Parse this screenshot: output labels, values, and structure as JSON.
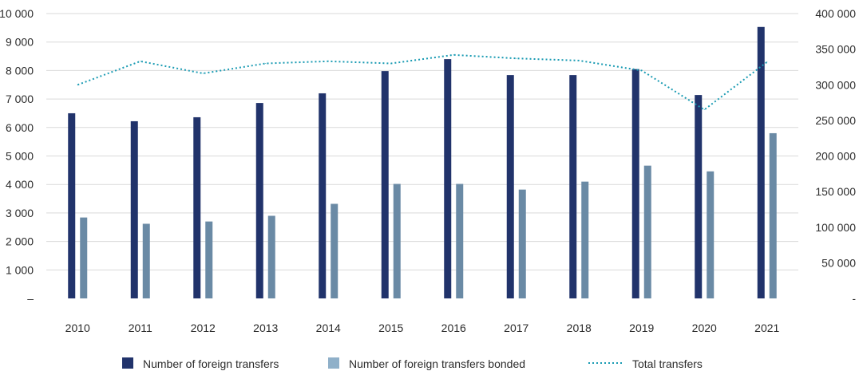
{
  "chart_data": {
    "type": "bar",
    "categories": [
      "2010",
      "2011",
      "2012",
      "2013",
      "2014",
      "2015",
      "2016",
      "2017",
      "2018",
      "2019",
      "2020",
      "2021"
    ],
    "series": [
      {
        "name": "Number of foreign transfers",
        "type": "bar",
        "axis": "left",
        "values": [
          6500,
          6220,
          6360,
          6860,
          7200,
          7980,
          8400,
          7840,
          7840,
          8050,
          7140,
          9530
        ]
      },
      {
        "name": "Number of foreign transfers bonded",
        "type": "bar",
        "axis": "left",
        "values": [
          2840,
          2620,
          2700,
          2900,
          3320,
          4020,
          4020,
          3820,
          4100,
          4660,
          4460,
          5800
        ]
      },
      {
        "name": "Total transfers",
        "type": "line",
        "axis": "right",
        "values": [
          300000,
          333000,
          316000,
          330000,
          333000,
          330000,
          342000,
          337000,
          334000,
          320000,
          265000,
          332000
        ]
      }
    ],
    "y_left": {
      "ylim": [
        0,
        10000
      ],
      "tick_labels": [
        "–",
        "1 000",
        "2 000",
        "3 000",
        "4 000",
        "5 000",
        "6 000",
        "7 000",
        "8 000",
        "9 000",
        "10 000"
      ]
    },
    "y_right": {
      "ylim": [
        0,
        400000
      ],
      "tick_labels": [
        "-",
        "50 000",
        "100 000",
        "150 000",
        "200 000",
        "250 000",
        "300 000",
        "350 000",
        "400 000"
      ]
    },
    "grid": true,
    "legend_position": "bottom",
    "colors": {
      "foreign": "#21336b",
      "bonded": "#6a8aa5",
      "bonded_legend": "#8fb0c9",
      "total": "#1a9bb3",
      "grid": "#d9d9d9"
    }
  }
}
